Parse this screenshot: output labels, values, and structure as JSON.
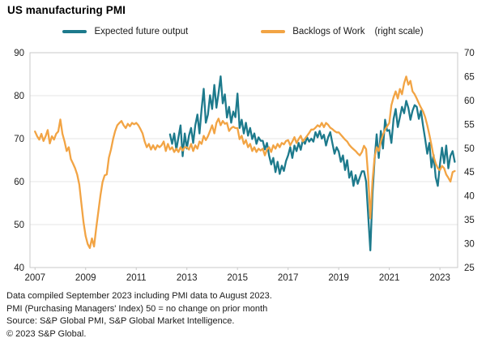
{
  "title": "US manufacturing PMI",
  "legend": {
    "items": [
      {
        "label": "Expected future output",
        "note": "",
        "color": "#1D7A8C"
      },
      {
        "label": "Backlogs of Work",
        "note": "(right scale)",
        "color": "#F2A444"
      }
    ]
  },
  "footnotes": [
    "Data compiled September 2023 including PMI data to August 2023.",
    "PMI (Purchasing Managers' Index) 50 = no change on prior month",
    "Source: S&P Global PMI, S&P Global Market Intelligence.",
    "© 2023 S&P Global."
  ],
  "colors": {
    "teal": "#1D7A8C",
    "orange": "#F2A444",
    "grid": "#E4E4E4",
    "border": "#C9C9C9",
    "tick_text": "#222222"
  },
  "chart_data": {
    "type": "line",
    "title": "US manufacturing PMI",
    "grid": "horizontal",
    "legend_position": "top",
    "x_axis": {
      "ticks": [
        2007,
        2009,
        2011,
        2013,
        2015,
        2017,
        2019,
        2021,
        2023
      ],
      "range": [
        2006.8,
        2023.7
      ]
    },
    "left_axis": {
      "ticks": [
        40,
        50,
        60,
        70,
        80,
        90
      ],
      "range": [
        40,
        90
      ]
    },
    "right_axis": {
      "ticks": [
        25,
        30,
        35,
        40,
        45,
        50,
        55,
        60,
        65,
        70
      ],
      "range": [
        25,
        70
      ]
    },
    "series": [
      {
        "name": "Expected future output",
        "axis": "left",
        "color": "#1D7A8C",
        "start": "2012-05",
        "monthly_values": [
          71.0,
          68.8,
          71.2,
          67.4,
          70.3,
          73.1,
          65.9,
          71.2,
          67.7,
          70.7,
          72.5,
          69.0,
          73.1,
          75.6,
          71.2,
          76.9,
          81.6,
          73.7,
          75.6,
          80.1,
          76.9,
          82.5,
          77.2,
          80.6,
          84.5,
          78.2,
          80.3,
          74.9,
          77.4,
          73.7,
          76.3,
          75.0,
          80.5,
          72.5,
          74.4,
          71.2,
          73.7,
          70.7,
          72.5,
          69.9,
          71.2,
          68.8,
          70.3,
          69.5,
          69.5,
          67.5,
          69.0,
          66.1,
          64.0,
          65.5,
          62.2,
          64.6,
          61.8,
          63.7,
          62.5,
          64.8,
          66.1,
          68.0,
          65.5,
          68.4,
          67.1,
          69.0,
          67.4,
          69.7,
          68.8,
          70.3,
          69.3,
          70.0,
          69.3,
          71.5,
          70.3,
          71.8,
          70.0,
          70.9,
          68.4,
          70.3,
          71.5,
          69.0,
          66.5,
          68.0,
          67.0,
          64.6,
          66.1,
          62.7,
          65.0,
          60.9,
          62.4,
          59.0,
          61.5,
          59.5,
          61.0,
          62.4,
          62.4,
          60.0,
          52.0,
          44.0,
          57.0,
          65.0,
          71.0,
          65.5,
          71.8,
          67.7,
          74.4,
          71.8,
          72.0,
          69.0,
          74.6,
          76.9,
          72.7,
          75.0,
          77.4,
          75.9,
          78.8,
          77.2,
          74.4,
          76.5,
          77.8,
          77.4,
          74.6,
          76.5,
          73.0,
          69.9,
          66.5,
          69.0,
          63.3,
          66.2,
          61.0,
          59.0,
          64.0,
          67.9,
          64.3,
          68.4,
          63.1,
          66.0,
          67.1,
          64.6
        ]
      },
      {
        "name": "Backlogs of Work",
        "axis": "right",
        "color": "#F2A444",
        "start": "2007-01",
        "monthly_values": [
          53.5,
          52.5,
          51.8,
          53.0,
          51.5,
          52.5,
          53.8,
          51.0,
          52.5,
          51.8,
          53.0,
          53.5,
          56.0,
          53.0,
          51.4,
          49.4,
          50.2,
          47.7,
          46.8,
          45.8,
          44.5,
          42.4,
          38.4,
          34.5,
          31.6,
          29.9,
          29.1,
          31.1,
          29.4,
          33.3,
          36.7,
          40.1,
          42.9,
          44.3,
          44.5,
          48.0,
          49.7,
          51.9,
          53.6,
          54.8,
          55.3,
          55.7,
          54.8,
          54.2,
          55.1,
          54.6,
          55.3,
          55.0,
          55.3,
          54.8,
          54.0,
          53.1,
          51.4,
          50.2,
          50.9,
          49.7,
          50.6,
          49.7,
          50.6,
          50.2,
          50.6,
          51.4,
          49.4,
          50.9,
          49.7,
          50.2,
          49.2,
          49.9,
          49.2,
          50.2,
          49.5,
          50.2,
          50.2,
          49.7,
          50.9,
          49.4,
          50.6,
          49.9,
          51.4,
          50.9,
          52.6,
          51.7,
          52.5,
          53.6,
          54.8,
          53.1,
          55.3,
          56.2,
          54.8,
          55.7,
          55.1,
          55.3,
          53.6,
          54.2,
          54.5,
          54.2,
          54.2,
          51.9,
          52.6,
          50.9,
          51.7,
          50.2,
          50.9,
          49.4,
          50.2,
          49.2,
          49.9,
          49.5,
          49.9,
          48.5,
          49.7,
          50.2,
          49.2,
          50.6,
          49.9,
          50.9,
          50.2,
          51.1,
          50.8,
          51.5,
          51.7,
          50.6,
          51.4,
          52.3,
          51.1,
          51.9,
          52.6,
          51.4,
          52.0,
          52.6,
          53.2,
          53.9,
          53.9,
          54.3,
          54.8,
          54.5,
          55.3,
          54.4,
          55.3,
          54.9,
          54.3,
          54.0,
          53.6,
          53.3,
          53.3,
          52.8,
          52.3,
          51.8,
          51.4,
          50.7,
          50.2,
          49.8,
          49.4,
          48.9,
          48.5,
          49.2,
          50.5,
          49.8,
          44.0,
          35.3,
          43.0,
          48.0,
          50.2,
          49.4,
          51.4,
          52.8,
          53.9,
          54.6,
          55.3,
          59.0,
          60.7,
          61.9,
          60.4,
          62.4,
          61.3,
          63.6,
          65.0,
          63.3,
          64.1,
          61.9,
          61.3,
          60.4,
          59.4,
          58.5,
          57.7,
          56.5,
          54.8,
          52.8,
          50.6,
          48.3,
          46.8,
          45.8,
          45.4,
          46.3,
          45.8,
          44.5,
          43.8,
          43.0,
          45.0,
          45.2
        ]
      }
    ]
  }
}
